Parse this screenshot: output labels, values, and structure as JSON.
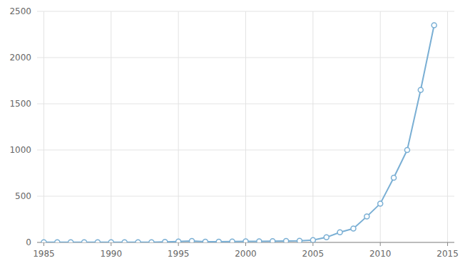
{
  "chart_data": {
    "type": "line",
    "x": [
      1985,
      1986,
      1987,
      1988,
      1989,
      1990,
      1991,
      1992,
      1993,
      1994,
      1995,
      1996,
      1997,
      1998,
      1999,
      2000,
      2001,
      2002,
      2003,
      2004,
      2005,
      2006,
      2007,
      2008,
      2009,
      2010,
      2011,
      2012,
      2013,
      2014
    ],
    "values": [
      2,
      1,
      1,
      1,
      2,
      1,
      1,
      1,
      1,
      5,
      10,
      15,
      8,
      8,
      10,
      12,
      12,
      14,
      15,
      18,
      25,
      55,
      110,
      150,
      280,
      420,
      700,
      1000,
      1650,
      2350
    ],
    "color": "#7aafd4",
    "marker": "circle",
    "xlim": [
      1984.5,
      2015.5
    ],
    "ylim": [
      0,
      2500
    ],
    "xticks": [
      1985,
      1990,
      1995,
      2000,
      2005,
      2010,
      2015
    ],
    "yticks": [
      0,
      500,
      1000,
      1500,
      2000,
      2500
    ],
    "grid": true
  }
}
